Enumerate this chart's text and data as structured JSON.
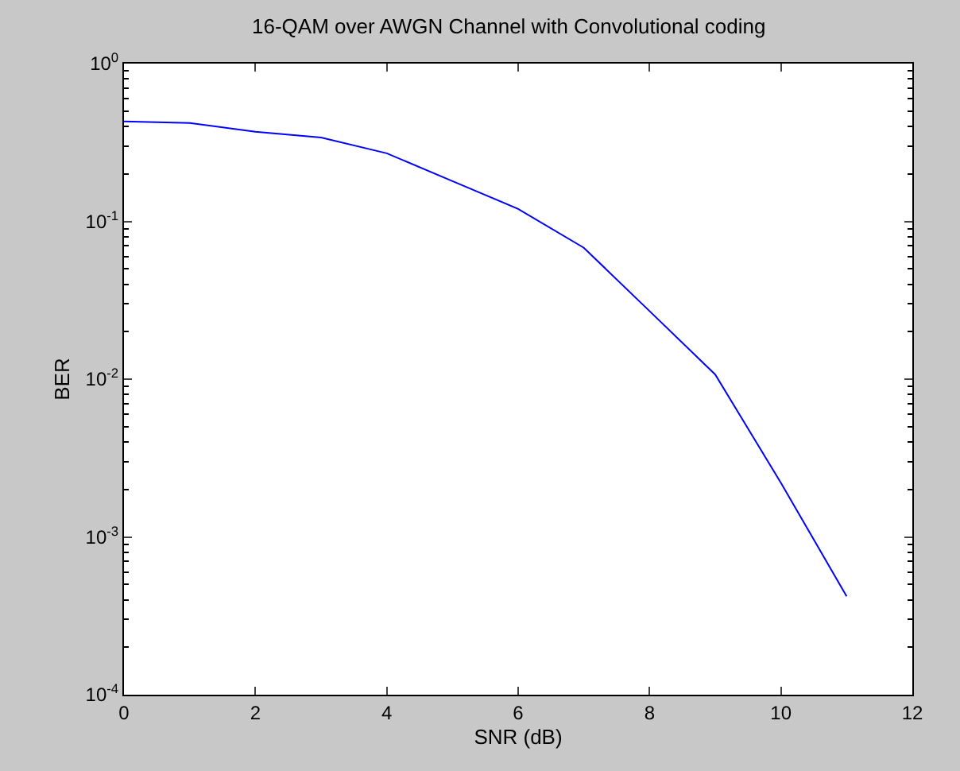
{
  "chart_data": {
    "type": "line",
    "title": "16-QAM over AWGN Channel with Convolutional coding",
    "xlabel": "SNR (dB)",
    "ylabel": "BER",
    "log": "y",
    "x": [
      0,
      1,
      2,
      3,
      4,
      5,
      6,
      7,
      8,
      9,
      10,
      11
    ],
    "series": [
      {
        "color": "#0000ff",
        "values": [
          0.43,
          0.42,
          0.37,
          0.34,
          0.27,
          0.18,
          0.12,
          0.068,
          0.027,
          0.0107,
          0.0022,
          0.00042
        ]
      }
    ],
    "xlim": [
      0,
      12
    ],
    "xticks": [
      0,
      2,
      4,
      6,
      8,
      10,
      12
    ],
    "ylim": [
      0.0001,
      1
    ],
    "yticks": [
      {
        "value": 0.0001,
        "label": "10$^{-4}$"
      },
      {
        "value": 0.001,
        "label": "10$^{-3}$"
      },
      {
        "value": 0.01,
        "label": "10$^{-2}$"
      },
      {
        "value": 0.1,
        "label": "10$^{-1}$"
      },
      {
        "value": 1,
        "label": "10$^{0}$"
      }
    ],
    "marker": "none",
    "line_style": "solid"
  }
}
